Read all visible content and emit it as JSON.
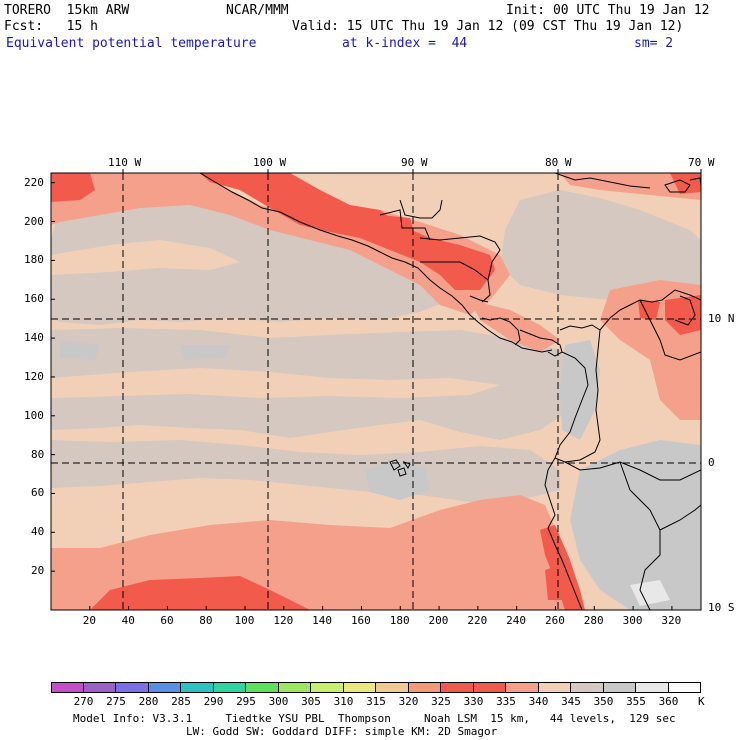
{
  "header": {
    "model": "TORERO  15km ARW",
    "org": "NCAR/MMM",
    "init": "Init: 00 UTC Thu 19 Jan 12",
    "fcst": "Fcst:   15 h",
    "valid": "Valid: 15 UTC Thu 19 Jan 12 (09 CST Thu 19 Jan 12)",
    "field": "Equivalent potential temperature",
    "level": "at k-index =  44",
    "smoothing": "sm= 2"
  },
  "map": {
    "top_lon_labels": [
      "110 W",
      "100 W",
      "90 W",
      "80 W",
      "70 W"
    ],
    "right_lat_labels": [
      "10 N",
      "0",
      "10 S"
    ],
    "y_tick_labels": [
      "20",
      "40",
      "60",
      "80",
      "100",
      "120",
      "140",
      "160",
      "180",
      "200",
      "220"
    ],
    "x_tick_labels": [
      "20",
      "40",
      "60",
      "80",
      "100",
      "120",
      "140",
      "160",
      "180",
      "200",
      "220",
      "240",
      "260",
      "280",
      "300",
      "320"
    ]
  },
  "colorbar": {
    "unit": "K",
    "levels": [
      "270",
      "275",
      "280",
      "285",
      "290",
      "295",
      "300",
      "305",
      "310",
      "315",
      "320",
      "325",
      "330",
      "335",
      "340",
      "345",
      "350",
      "355",
      "360"
    ],
    "colors": [
      "#c24fc8",
      "#9a62c8",
      "#7b6ee6",
      "#5a8fe6",
      "#2fc2c2",
      "#2dd6a0",
      "#5ee05e",
      "#9ee662",
      "#c8ee6e",
      "#e8e87e",
      "#f4c890",
      "#f49a72",
      "#f25a4c",
      "#f25a4c",
      "#f4a08a",
      "#f2d0b8",
      "#d4c8c0",
      "#c8c8c8",
      "#e8e8e8",
      "#ffffff"
    ]
  },
  "footer": {
    "line1": "Model Info: V3.3.1     Tiedtke YSU PBL  Thompson     Noah LSM  15 km,   44 levels,  129 sec",
    "line2": "LW: Godd SW: Goddard DIFF: simple KM: 2D Smagor"
  }
}
